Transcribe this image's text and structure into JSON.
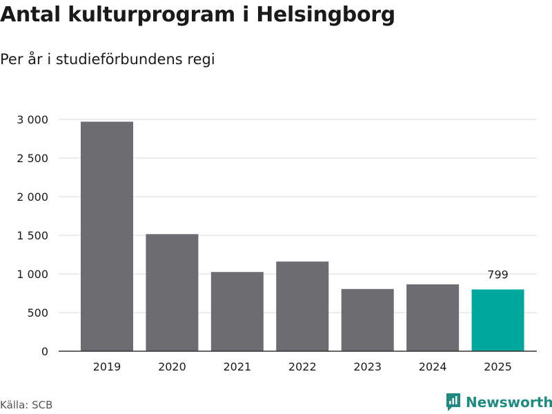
{
  "title": "Antal kulturprogram i Helsingborg",
  "subtitle": "Per år i studieförbundens regi",
  "source": "Källa: SCB",
  "brand": {
    "name": "Newsworthy",
    "icon": "newsworthy-logo-icon"
  },
  "colors": {
    "bar": "#6d6c71",
    "highlight": "#00a79b",
    "grid": "#d9d9d9",
    "axis": "#333333",
    "brand": "#1f8a80"
  },
  "chart_data": {
    "type": "bar",
    "categories": [
      "2019",
      "2020",
      "2021",
      "2022",
      "2023",
      "2024",
      "2025"
    ],
    "values": [
      2970,
      1515,
      1025,
      1160,
      805,
      865,
      799
    ],
    "highlight_index": 6,
    "data_labels": [
      {
        "index": 6,
        "text": "799"
      }
    ],
    "ylim": [
      0,
      3000
    ],
    "yticks": [
      0,
      500,
      1000,
      1500,
      2000,
      2500,
      3000
    ],
    "ytick_labels": [
      "0",
      "500",
      "1 000",
      "1 500",
      "2 000",
      "2 500",
      "3 000"
    ],
    "grid": true,
    "legend": "none"
  }
}
